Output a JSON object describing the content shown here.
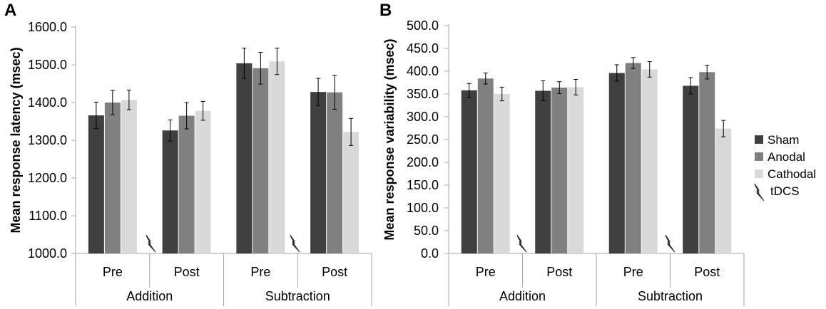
{
  "legend": {
    "items": [
      {
        "name": "Sham",
        "color": "#3f3f3f"
      },
      {
        "name": "Anodal",
        "color": "#808080"
      },
      {
        "name": "Cathodal",
        "color": "#d9d9d9"
      }
    ],
    "tdcs_label": "tDCS",
    "tdcs_icon": "lightning-bolt-icon"
  },
  "chart_data": [
    {
      "type": "bar",
      "panel": "A",
      "ylabel": "Mean response latency (msec)",
      "ylim": [
        1000,
        1600
      ],
      "yticks": [
        "1000.0",
        "1100.0",
        "1200.0",
        "1300.0",
        "1400.0",
        "1500.0",
        "1600.0"
      ],
      "categories": [
        "Pre",
        "Post",
        "Pre",
        "Post"
      ],
      "groups": [
        "Addition",
        "Subtraction"
      ],
      "series": [
        {
          "name": "Sham",
          "values": [
            1366,
            1326,
            1504,
            1428
          ],
          "errors": [
            35,
            28,
            40,
            36
          ]
        },
        {
          "name": "Anodal",
          "values": [
            1400,
            1365,
            1491,
            1427
          ],
          "errors": [
            32,
            35,
            42,
            45
          ]
        },
        {
          "name": "Cathodal",
          "values": [
            1407,
            1378,
            1509,
            1322
          ],
          "errors": [
            26,
            25,
            35,
            36
          ]
        }
      ]
    },
    {
      "type": "bar",
      "panel": "B",
      "ylabel": "Mean response variability (msec)",
      "ylim": [
        0,
        500
      ],
      "yticks": [
        "0.0",
        "50.0",
        "100.0",
        "150.0",
        "200.0",
        "250.0",
        "300.0",
        "350.0",
        "400.0",
        "450.0",
        "500.0"
      ],
      "categories": [
        "Pre",
        "Post",
        "Pre",
        "Post"
      ],
      "groups": [
        "Addition",
        "Subtraction"
      ],
      "series": [
        {
          "name": "Sham",
          "values": [
            358,
            357,
            396,
            368
          ],
          "errors": [
            15,
            22,
            18,
            18
          ]
        },
        {
          "name": "Anodal",
          "values": [
            384,
            364,
            418,
            398
          ],
          "errors": [
            12,
            13,
            12,
            15
          ]
        },
        {
          "name": "Cathodal",
          "values": [
            350,
            365,
            404,
            274
          ],
          "errors": [
            15,
            17,
            17,
            18
          ]
        }
      ]
    }
  ]
}
